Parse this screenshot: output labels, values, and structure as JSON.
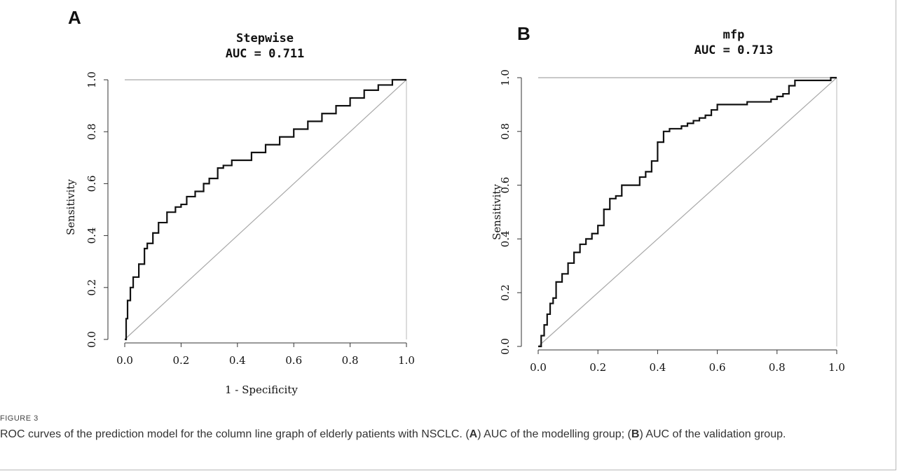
{
  "chart_data": [
    {
      "type": "line",
      "panel_letter": "A",
      "title": "Stepwise",
      "subtitle": "AUC = 0.711",
      "xlabel": "1 - Specificity",
      "ylabel": "Sensitivity",
      "xlim": [
        0,
        1
      ],
      "ylim": [
        0,
        1
      ],
      "x_ticks": [
        "0.0",
        "0.2",
        "0.4",
        "0.6",
        "0.8",
        "1.0"
      ],
      "y_ticks": [
        "0.0",
        "0.2",
        "0.4",
        "0.6",
        "0.8",
        "1.0"
      ],
      "grid": false,
      "series": [
        {
          "x": [
            0,
            0.005,
            0.01,
            0.02,
            0.03,
            0.05,
            0.07,
            0.08,
            0.1,
            0.12,
            0.15,
            0.18,
            0.2,
            0.22,
            0.25,
            0.28,
            0.3,
            0.33,
            0.35,
            0.38,
            0.4,
            0.45,
            0.5,
            0.55,
            0.6,
            0.65,
            0.7,
            0.75,
            0.8,
            0.85,
            0.9,
            0.95,
            1.0
          ],
          "y": [
            0,
            0.08,
            0.15,
            0.2,
            0.24,
            0.29,
            0.35,
            0.37,
            0.41,
            0.45,
            0.49,
            0.51,
            0.52,
            0.55,
            0.57,
            0.6,
            0.62,
            0.66,
            0.67,
            0.69,
            0.69,
            0.72,
            0.75,
            0.78,
            0.81,
            0.84,
            0.87,
            0.9,
            0.93,
            0.96,
            0.98,
            1.0,
            1.0
          ]
        },
        {
          "x": [
            0,
            1
          ],
          "y": [
            0,
            1
          ]
        }
      ]
    },
    {
      "type": "line",
      "panel_letter": "B",
      "title": "mfp",
      "subtitle": "AUC = 0.713",
      "ylabel": "Sensitivity",
      "xlim": [
        0,
        1
      ],
      "ylim": [
        0,
        1
      ],
      "x_ticks": [
        "0.0",
        "0.2",
        "0.4",
        "0.6",
        "0.8",
        "1.0"
      ],
      "y_ticks": [
        "0.0",
        "0.2",
        "0.4",
        "0.6",
        "0.8",
        "1.0"
      ],
      "grid": false,
      "series": [
        {
          "x": [
            0,
            0.01,
            0.02,
            0.03,
            0.04,
            0.05,
            0.06,
            0.08,
            0.1,
            0.12,
            0.14,
            0.16,
            0.18,
            0.2,
            0.22,
            0.24,
            0.26,
            0.28,
            0.3,
            0.32,
            0.34,
            0.36,
            0.38,
            0.4,
            0.42,
            0.44,
            0.46,
            0.48,
            0.5,
            0.52,
            0.54,
            0.56,
            0.58,
            0.6,
            0.65,
            0.7,
            0.75,
            0.78,
            0.8,
            0.82,
            0.84,
            0.86,
            0.9,
            0.95,
            0.98,
            1.0
          ],
          "y": [
            0,
            0.04,
            0.08,
            0.12,
            0.16,
            0.18,
            0.24,
            0.27,
            0.31,
            0.35,
            0.38,
            0.4,
            0.42,
            0.45,
            0.51,
            0.55,
            0.56,
            0.6,
            0.6,
            0.6,
            0.63,
            0.65,
            0.69,
            0.76,
            0.8,
            0.81,
            0.81,
            0.82,
            0.83,
            0.84,
            0.85,
            0.86,
            0.88,
            0.9,
            0.9,
            0.91,
            0.91,
            0.92,
            0.93,
            0.94,
            0.97,
            0.99,
            0.99,
            0.99,
            1.0,
            1.0
          ]
        },
        {
          "x": [
            0,
            1
          ],
          "y": [
            0,
            1
          ]
        }
      ]
    }
  ],
  "caption": {
    "label": "FIGURE 3",
    "text_intro": "ROC curves of the prediction model for the column line graph of elderly patients with NSCLC. (",
    "a_letter": "A",
    "text_a": ") AUC of the modelling group; (",
    "b_letter": "B",
    "text_b": ") AUC of the validation group."
  },
  "colors": {
    "curve": "#111111",
    "diagonal": "#a8a8a8",
    "axis": "#333333",
    "topline": "#a8a8a8"
  }
}
